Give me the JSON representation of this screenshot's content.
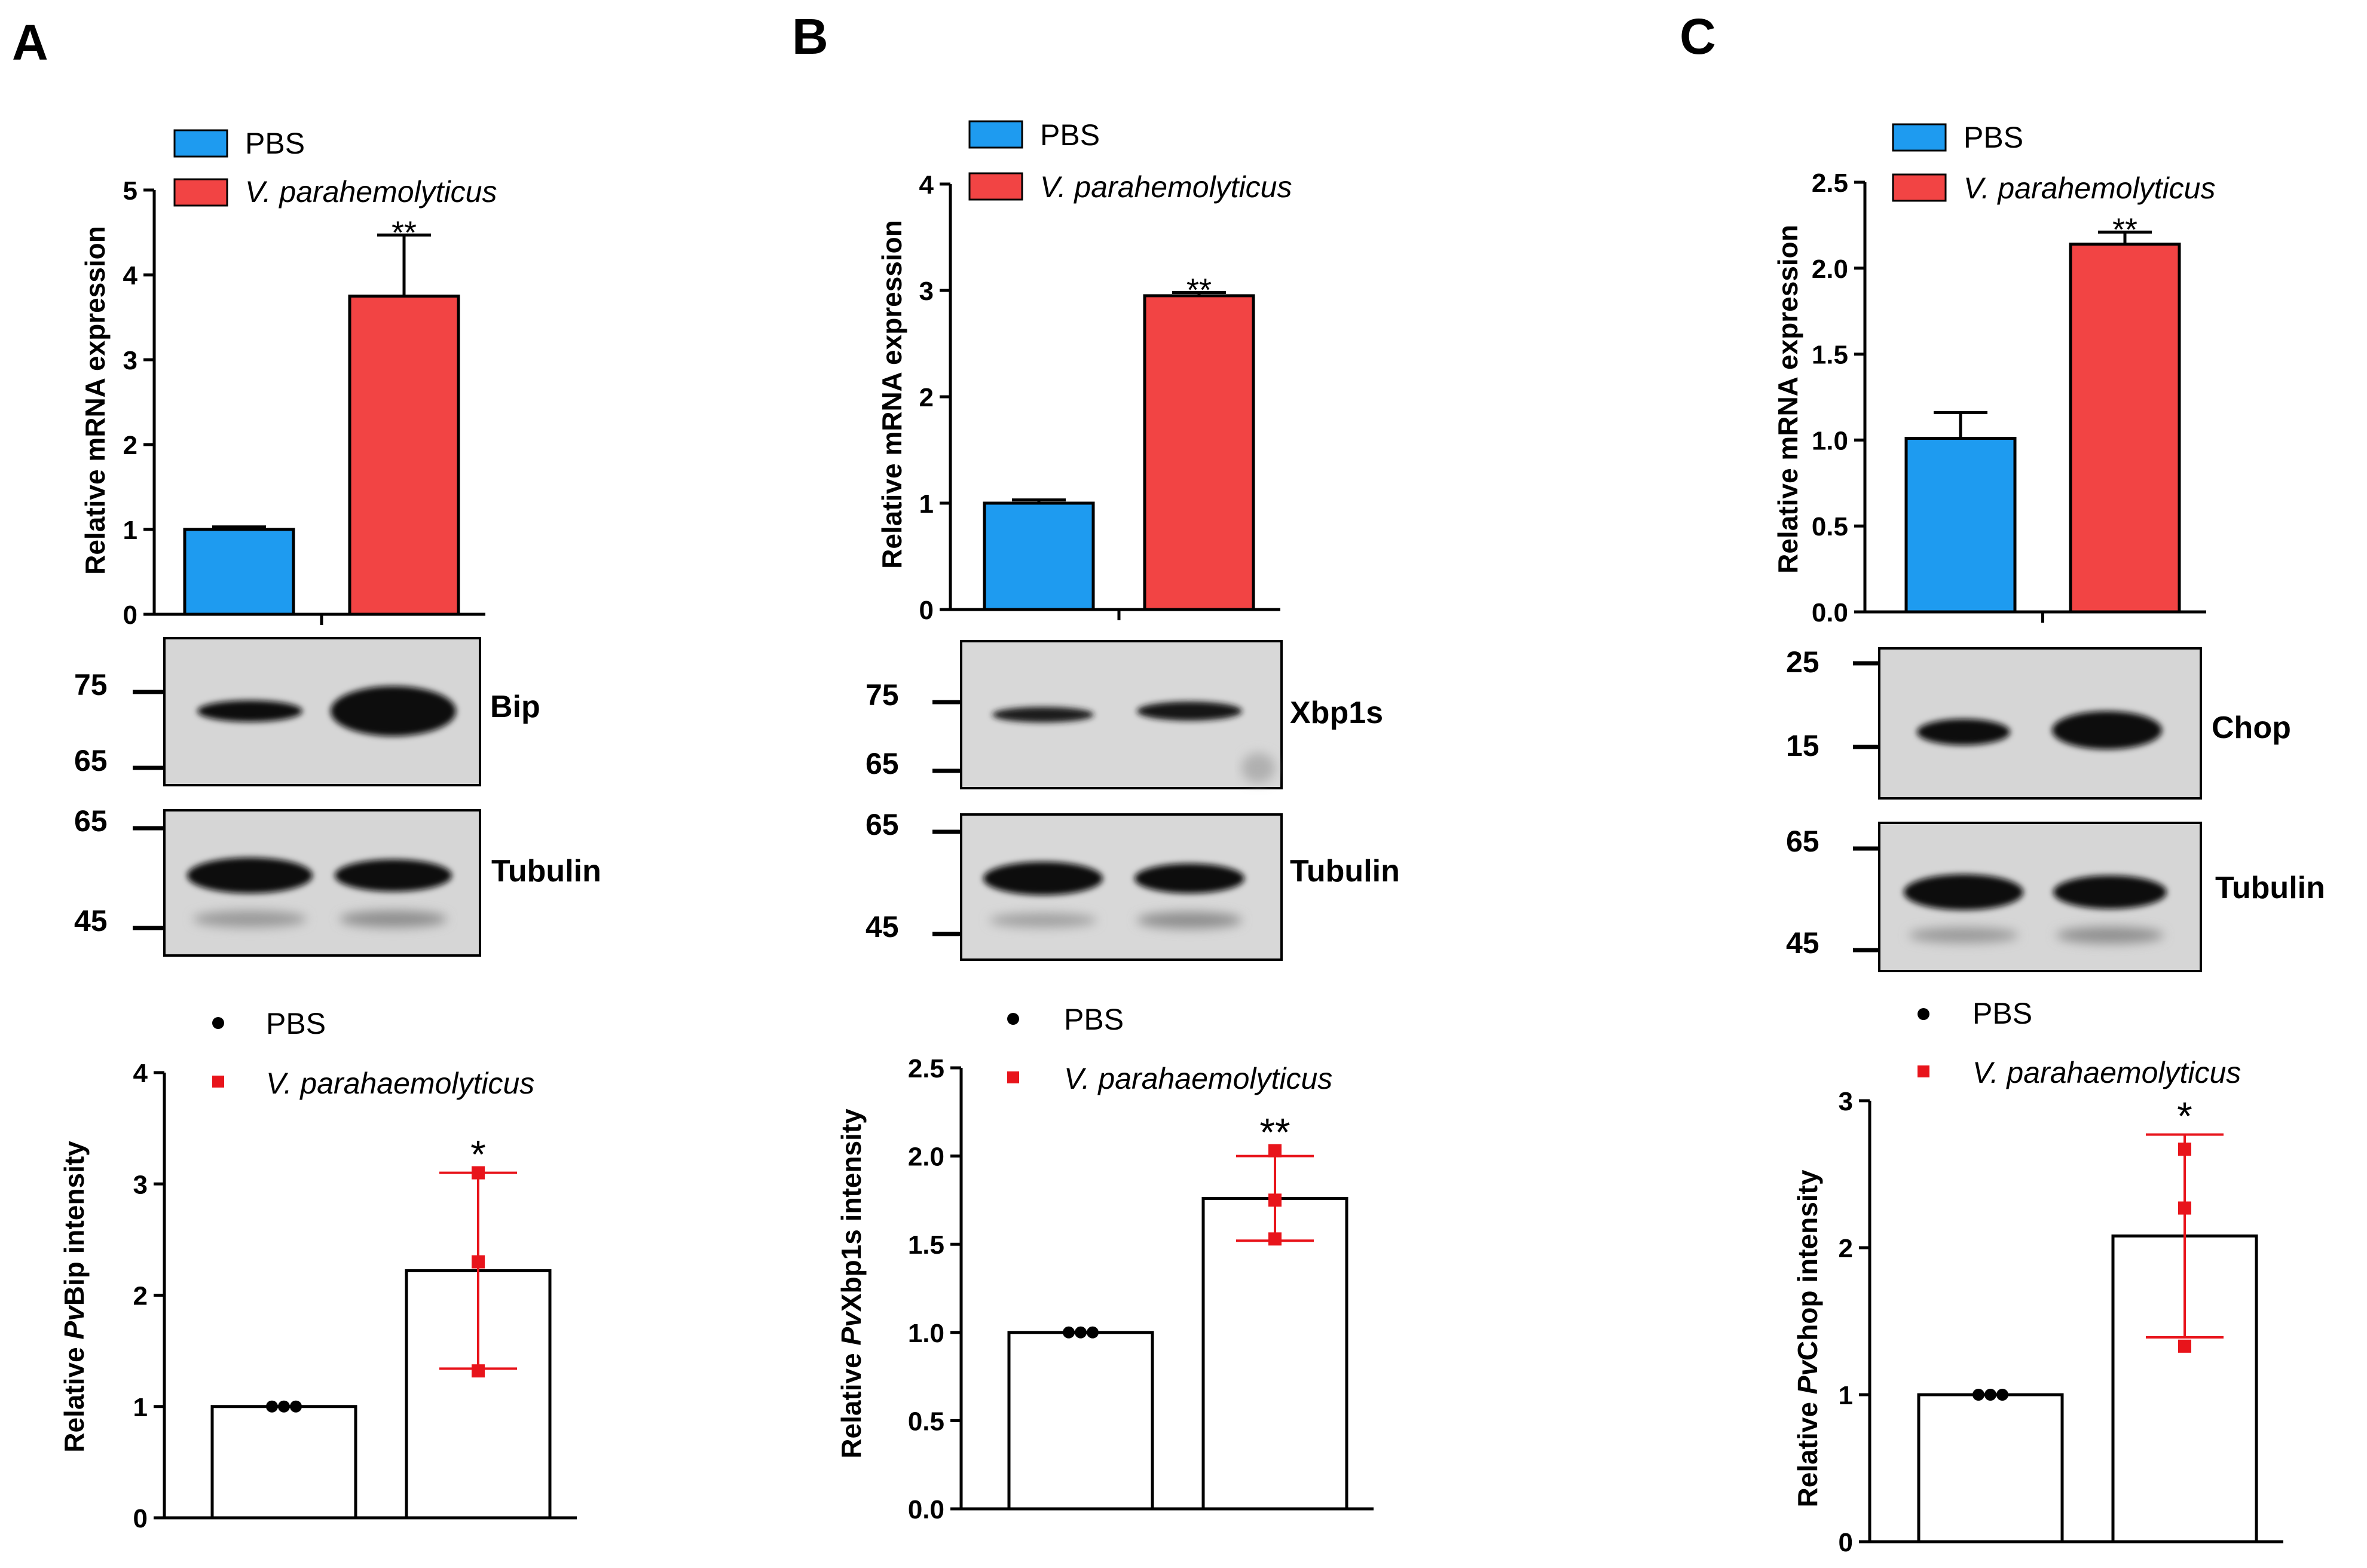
{
  "colors": {
    "pbs": "#1E9BF0",
    "vibrio": "#F24444",
    "axis": "#000000",
    "points_pbs": "#000000",
    "points_vibrio": "#E8141B",
    "blot_bg": "#d4d4d4",
    "band": "#0d0d0d"
  },
  "legend": {
    "pbs": "PBS",
    "vibrio_top": "V. parahemolyticus",
    "vibrio_bottom": "V. parahaemolyticus"
  },
  "panels": [
    {
      "letter": "A",
      "blot_target": "Bip",
      "blot_target_markers": [
        "75",
        "65"
      ],
      "loading_control": "Tubulin",
      "loading_markers": [
        "65",
        "45"
      ]
    },
    {
      "letter": "B",
      "blot_target": "Xbp1s",
      "blot_target_markers": [
        "75",
        "65"
      ],
      "loading_control": "Tubulin",
      "loading_markers": [
        "65",
        "45"
      ]
    },
    {
      "letter": "C",
      "blot_target": "Chop",
      "blot_target_markers": [
        "25",
        "15"
      ],
      "loading_control": "Tubulin",
      "loading_markers": [
        "65",
        "45"
      ]
    }
  ],
  "chart_data": [
    {
      "panel": "A",
      "type": "bar",
      "title": "",
      "xlabel": "",
      "ylabel": "Relative mRNA expression",
      "categories": [
        "PBS",
        "V. parahemolyticus"
      ],
      "series": [
        {
          "name": "mean",
          "values": [
            1.0,
            3.75
          ]
        }
      ],
      "error_up": [
        0.03,
        0.72
      ],
      "significance": "**",
      "ylim": [
        0,
        5
      ],
      "yticks": [
        0,
        1,
        2,
        3,
        4,
        5
      ],
      "tick_labels": [
        "0",
        "1",
        "2",
        "3",
        "4",
        "5"
      ]
    },
    {
      "panel": "B",
      "type": "bar",
      "title": "",
      "xlabel": "",
      "ylabel": "Relative mRNA expression",
      "categories": [
        "PBS",
        "V. parahemolyticus"
      ],
      "series": [
        {
          "name": "mean",
          "values": [
            1.0,
            2.95
          ]
        }
      ],
      "error_up": [
        0.03,
        0.03
      ],
      "significance": "**",
      "ylim": [
        0,
        4
      ],
      "yticks": [
        0,
        1,
        2,
        3,
        4
      ],
      "tick_labels": [
        "0",
        "1",
        "2",
        "3",
        "4"
      ]
    },
    {
      "panel": "C",
      "type": "bar",
      "title": "",
      "xlabel": "",
      "ylabel": "Relative mRNA expression",
      "categories": [
        "PBS",
        "V. parahemolyticus"
      ],
      "series": [
        {
          "name": "mean",
          "values": [
            1.01,
            2.14
          ]
        }
      ],
      "error_up": [
        0.15,
        0.07
      ],
      "significance": "**",
      "ylim": [
        0,
        2.5
      ],
      "yticks": [
        0,
        0.5,
        1.0,
        1.5,
        2.0,
        2.5
      ],
      "tick_labels": [
        "0.0",
        "0.5",
        "1.0",
        "1.5",
        "2.0",
        "2.5"
      ]
    },
    {
      "panel": "A",
      "type": "bar",
      "title": "",
      "xlabel": "",
      "ylabel_prefix": "Relative ",
      "ylabel_italic": "Pv",
      "ylabel_suffix": "Bip intensity",
      "categories": [
        "PBS",
        "V. parahaemolyticus"
      ],
      "series": [
        {
          "name": "mean",
          "values": [
            1.0,
            2.22
          ]
        }
      ],
      "sd": [
        0,
        0.88
      ],
      "points": [
        [
          1.0,
          1.0,
          1.0
        ],
        [
          3.1,
          2.3,
          1.32
        ]
      ],
      "significance": "*",
      "ylim": [
        0,
        4
      ],
      "yticks": [
        0,
        1,
        2,
        3,
        4
      ],
      "tick_labels": [
        "0",
        "1",
        "2",
        "3",
        "4"
      ]
    },
    {
      "panel": "B",
      "type": "bar",
      "title": "",
      "xlabel": "",
      "ylabel_prefix": "Relative ",
      "ylabel_italic": "Pv",
      "ylabel_suffix": "Xbp1s intensity",
      "categories": [
        "PBS",
        "V. parahaemolyticus"
      ],
      "series": [
        {
          "name": "mean",
          "values": [
            1.0,
            1.76
          ]
        }
      ],
      "sd": [
        0,
        0.24
      ],
      "points": [
        [
          1.0,
          1.0,
          1.0
        ],
        [
          2.03,
          1.75,
          1.53
        ]
      ],
      "significance": "**",
      "ylim": [
        0,
        2.5
      ],
      "yticks": [
        0,
        0.5,
        1.0,
        1.5,
        2.0,
        2.5
      ],
      "tick_labels": [
        "0.0",
        "0.5",
        "1.0",
        "1.5",
        "2.0",
        "2.5"
      ]
    },
    {
      "panel": "C",
      "type": "bar",
      "title": "",
      "xlabel": "",
      "ylabel_prefix": "Relative ",
      "ylabel_italic": "Pv",
      "ylabel_suffix": "Chop intensity",
      "categories": [
        "PBS",
        "V. parahaemolyticus"
      ],
      "series": [
        {
          "name": "mean",
          "values": [
            1.0,
            2.08
          ]
        }
      ],
      "sd": [
        0,
        0.69
      ],
      "points": [
        [
          1.0,
          1.0,
          1.0
        ],
        [
          2.67,
          2.27,
          1.33
        ]
      ],
      "significance": "*",
      "ylim": [
        0,
        3
      ],
      "yticks": [
        0,
        1,
        2,
        3
      ],
      "tick_labels": [
        "0",
        "1",
        "2",
        "3"
      ]
    }
  ]
}
